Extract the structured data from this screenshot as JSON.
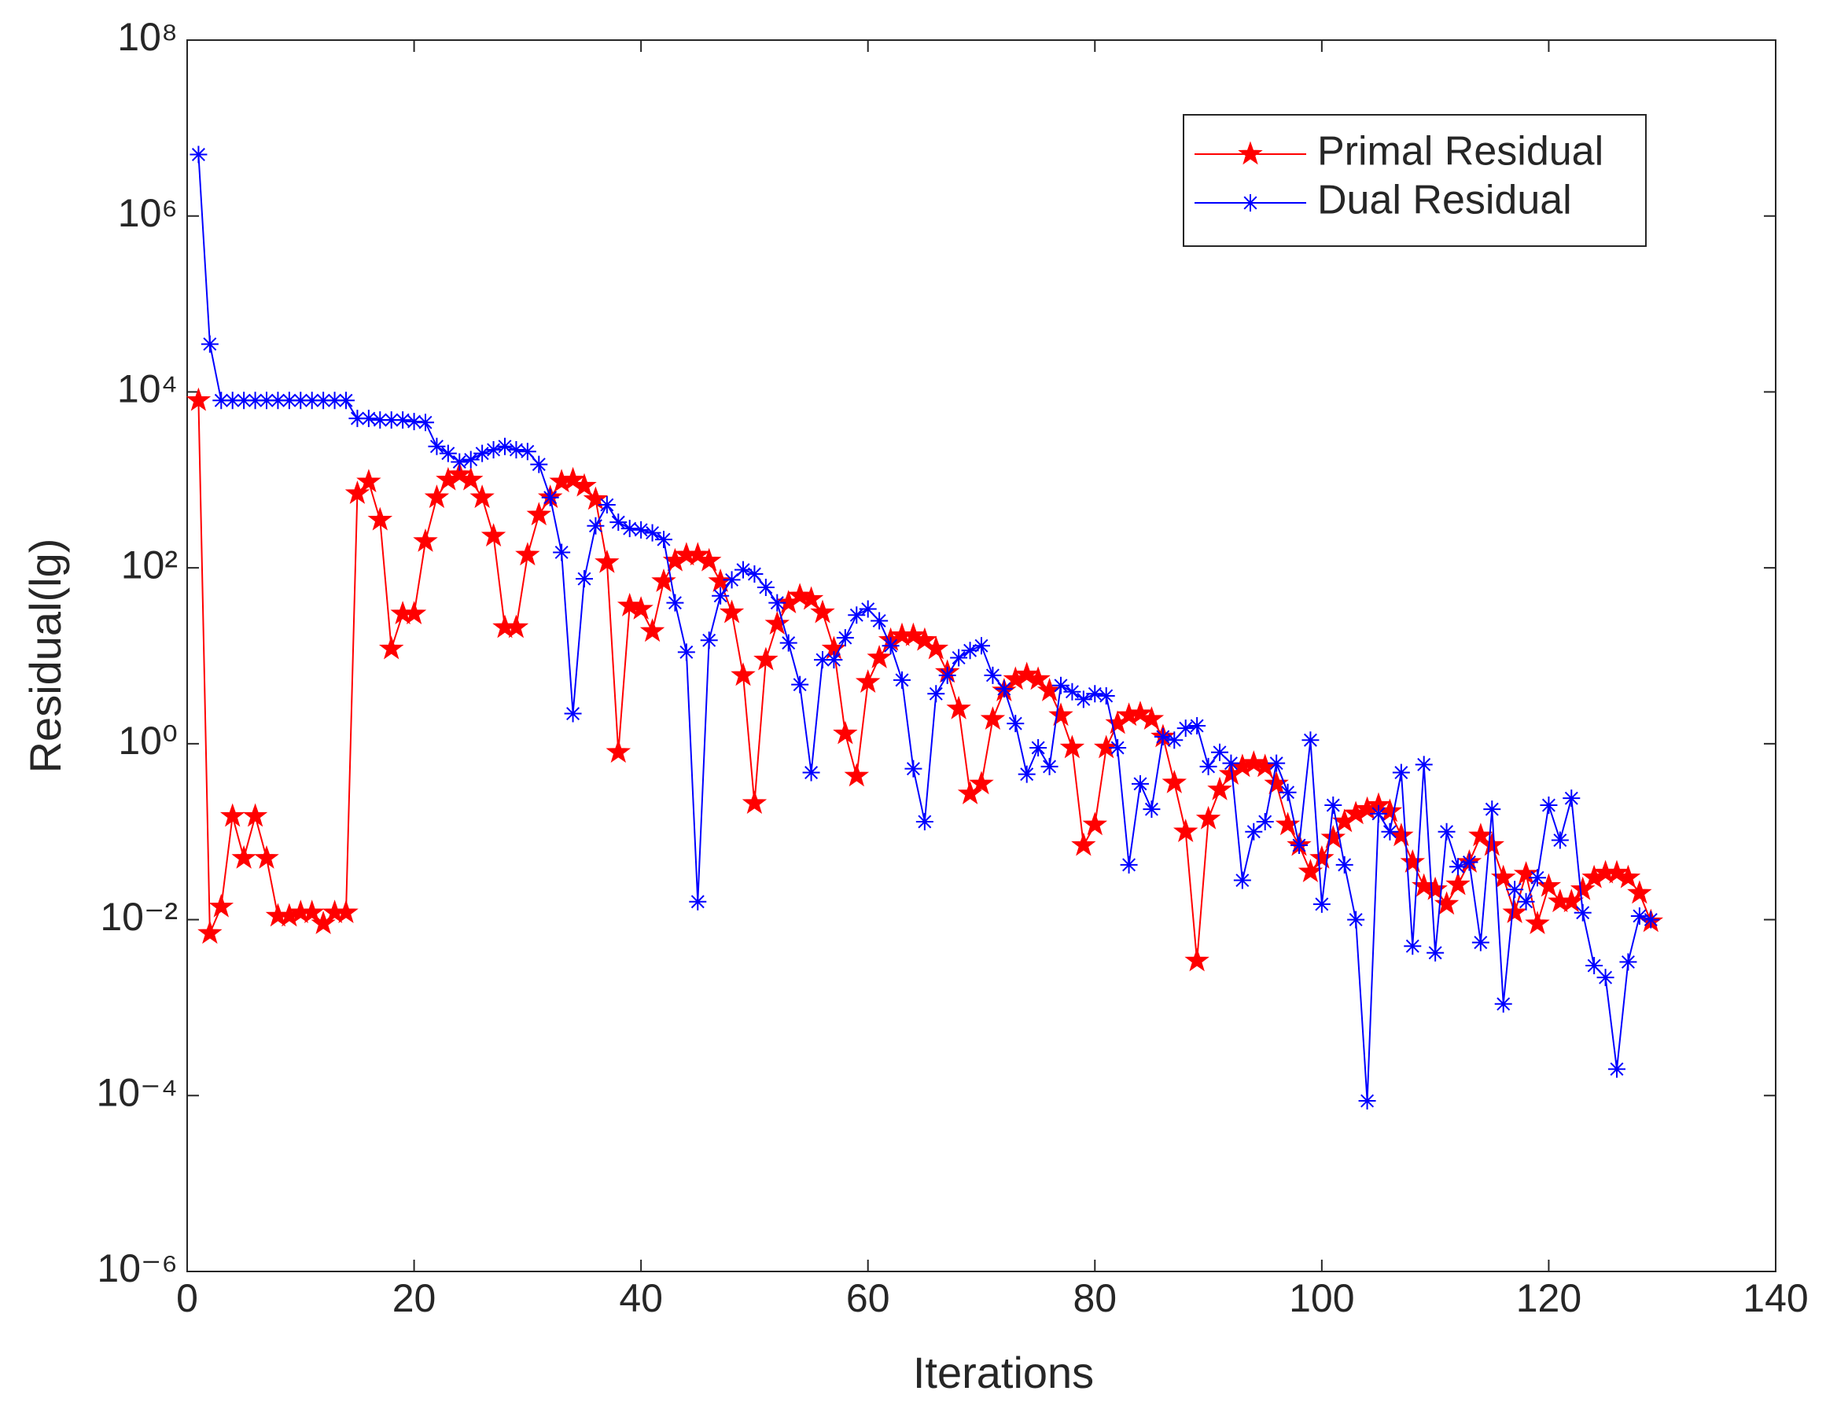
{
  "chart_data": {
    "type": "line",
    "xlabel": "Iterations",
    "ylabel": "Residual(lg)",
    "x": [
      1,
      2,
      3,
      4,
      5,
      6,
      7,
      8,
      9,
      10,
      11,
      12,
      13,
      14,
      15,
      16,
      17,
      18,
      19,
      20,
      21,
      22,
      23,
      24,
      25,
      26,
      27,
      28,
      29,
      30,
      31,
      32,
      33,
      34,
      35,
      36,
      37,
      38,
      39,
      40,
      41,
      42,
      43,
      44,
      45,
      46,
      47,
      48,
      49,
      50,
      51,
      52,
      53,
      54,
      55,
      56,
      57,
      58,
      59,
      60,
      61,
      62,
      63,
      64,
      65,
      66,
      67,
      68,
      69,
      70,
      71,
      72,
      73,
      74,
      75,
      76,
      77,
      78,
      79,
      80,
      81,
      82,
      83,
      84,
      85,
      86,
      87,
      88,
      89,
      90,
      91,
      92,
      93,
      94,
      95,
      96,
      97,
      98,
      99,
      100,
      101,
      102,
      103,
      104,
      105,
      106,
      107,
      108,
      109,
      110,
      111,
      112,
      113,
      114,
      115,
      116,
      117,
      118,
      119,
      120,
      121,
      122,
      123,
      124,
      125,
      126,
      127,
      128,
      129
    ],
    "series": [
      {
        "name": "Primal Residual",
        "color": "#ff0000",
        "marker": "pentagram",
        "values": [
          8000,
          0.007,
          0.014,
          0.15,
          0.05,
          0.15,
          0.05,
          0.011,
          0.011,
          0.012,
          0.012,
          0.009,
          0.012,
          0.012,
          700,
          950,
          350,
          12,
          30,
          30,
          200,
          630,
          1000,
          1150,
          1000,
          630,
          230,
          21,
          21,
          140,
          400,
          630,
          950,
          1000,
          850,
          600,
          115,
          0.8,
          37,
          34,
          19,
          70,
          120,
          140,
          140,
          120,
          70,
          31,
          6,
          0.21,
          9,
          23,
          40,
          48,
          44,
          31,
          12,
          1.3,
          0.43,
          5,
          9.5,
          15,
          17,
          17,
          15,
          12,
          6.5,
          2.5,
          0.27,
          0.35,
          1.9,
          4,
          5.4,
          6.1,
          5.4,
          4,
          2.1,
          0.9,
          0.07,
          0.12,
          0.9,
          1.7,
          2.1,
          2.2,
          1.9,
          1.2,
          0.36,
          0.1,
          0.0034,
          0.14,
          0.3,
          0.45,
          0.55,
          0.6,
          0.55,
          0.35,
          0.12,
          0.07,
          0.035,
          0.05,
          0.085,
          0.13,
          0.16,
          0.18,
          0.2,
          0.17,
          0.09,
          0.045,
          0.024,
          0.022,
          0.015,
          0.025,
          0.045,
          0.09,
          0.07,
          0.03,
          0.012,
          0.033,
          0.009,
          0.024,
          0.016,
          0.016,
          0.022,
          0.03,
          0.034,
          0.034,
          0.03,
          0.02,
          0.0095
        ]
      },
      {
        "name": "Dual Residual",
        "color": "#0000ff",
        "marker": "asterisk",
        "values": [
          5000000,
          35000,
          8000,
          8000,
          8000,
          8000,
          8000,
          8000,
          8000,
          8000,
          8000,
          8000,
          8000,
          8000,
          5000,
          5000,
          4800,
          4800,
          4800,
          4600,
          4500,
          2400,
          2000,
          1600,
          1700,
          2000,
          2200,
          2400,
          2200,
          2100,
          1500,
          630,
          150,
          2.2,
          75,
          300,
          520,
          330,
          280,
          270,
          250,
          210,
          40,
          11,
          0.016,
          15,
          48,
          73,
          95,
          85,
          60,
          40,
          14,
          4.7,
          0.47,
          9,
          9,
          16,
          29,
          34,
          25,
          13,
          5.3,
          0.52,
          0.13,
          3.7,
          6,
          9.5,
          11.5,
          13,
          6,
          4.2,
          1.7,
          0.45,
          0.9,
          0.55,
          4.6,
          3.9,
          3.2,
          3.7,
          3.5,
          0.9,
          0.042,
          0.35,
          0.18,
          1.2,
          1.1,
          1.5,
          1.6,
          0.55,
          0.8,
          0.6,
          0.028,
          0.1,
          0.13,
          0.6,
          0.28,
          0.07,
          1.1,
          0.015,
          0.2,
          0.042,
          0.01,
          8.7e-05,
          0.16,
          0.1,
          0.47,
          0.005,
          0.58,
          0.0042,
          0.1,
          0.04,
          0.045,
          0.0055,
          0.18,
          0.0011,
          0.022,
          0.016,
          0.03,
          0.2,
          0.08,
          0.24,
          0.012,
          0.003,
          0.0022,
          0.0002,
          0.0033,
          0.011,
          0.01
        ]
      }
    ],
    "xlim": [
      0,
      140
    ],
    "xticks": [
      0,
      20,
      40,
      60,
      80,
      100,
      120,
      140
    ],
    "ylim": [
      1e-06,
      100000000
    ],
    "ylog": true,
    "yticks": [
      {
        "value": 1e-06,
        "label": "10⁻⁶"
      },
      {
        "value": 0.0001,
        "label": "10⁻⁴"
      },
      {
        "value": 0.01,
        "label": "10⁻²"
      },
      {
        "value": 1,
        "label": "10⁰"
      },
      {
        "value": 100,
        "label": "10²"
      },
      {
        "value": 10000,
        "label": "10⁴"
      },
      {
        "value": 1000000,
        "label": "10⁶"
      },
      {
        "value": 100000000,
        "label": "10⁸"
      }
    ],
    "grid": false,
    "legend": "northeast"
  }
}
